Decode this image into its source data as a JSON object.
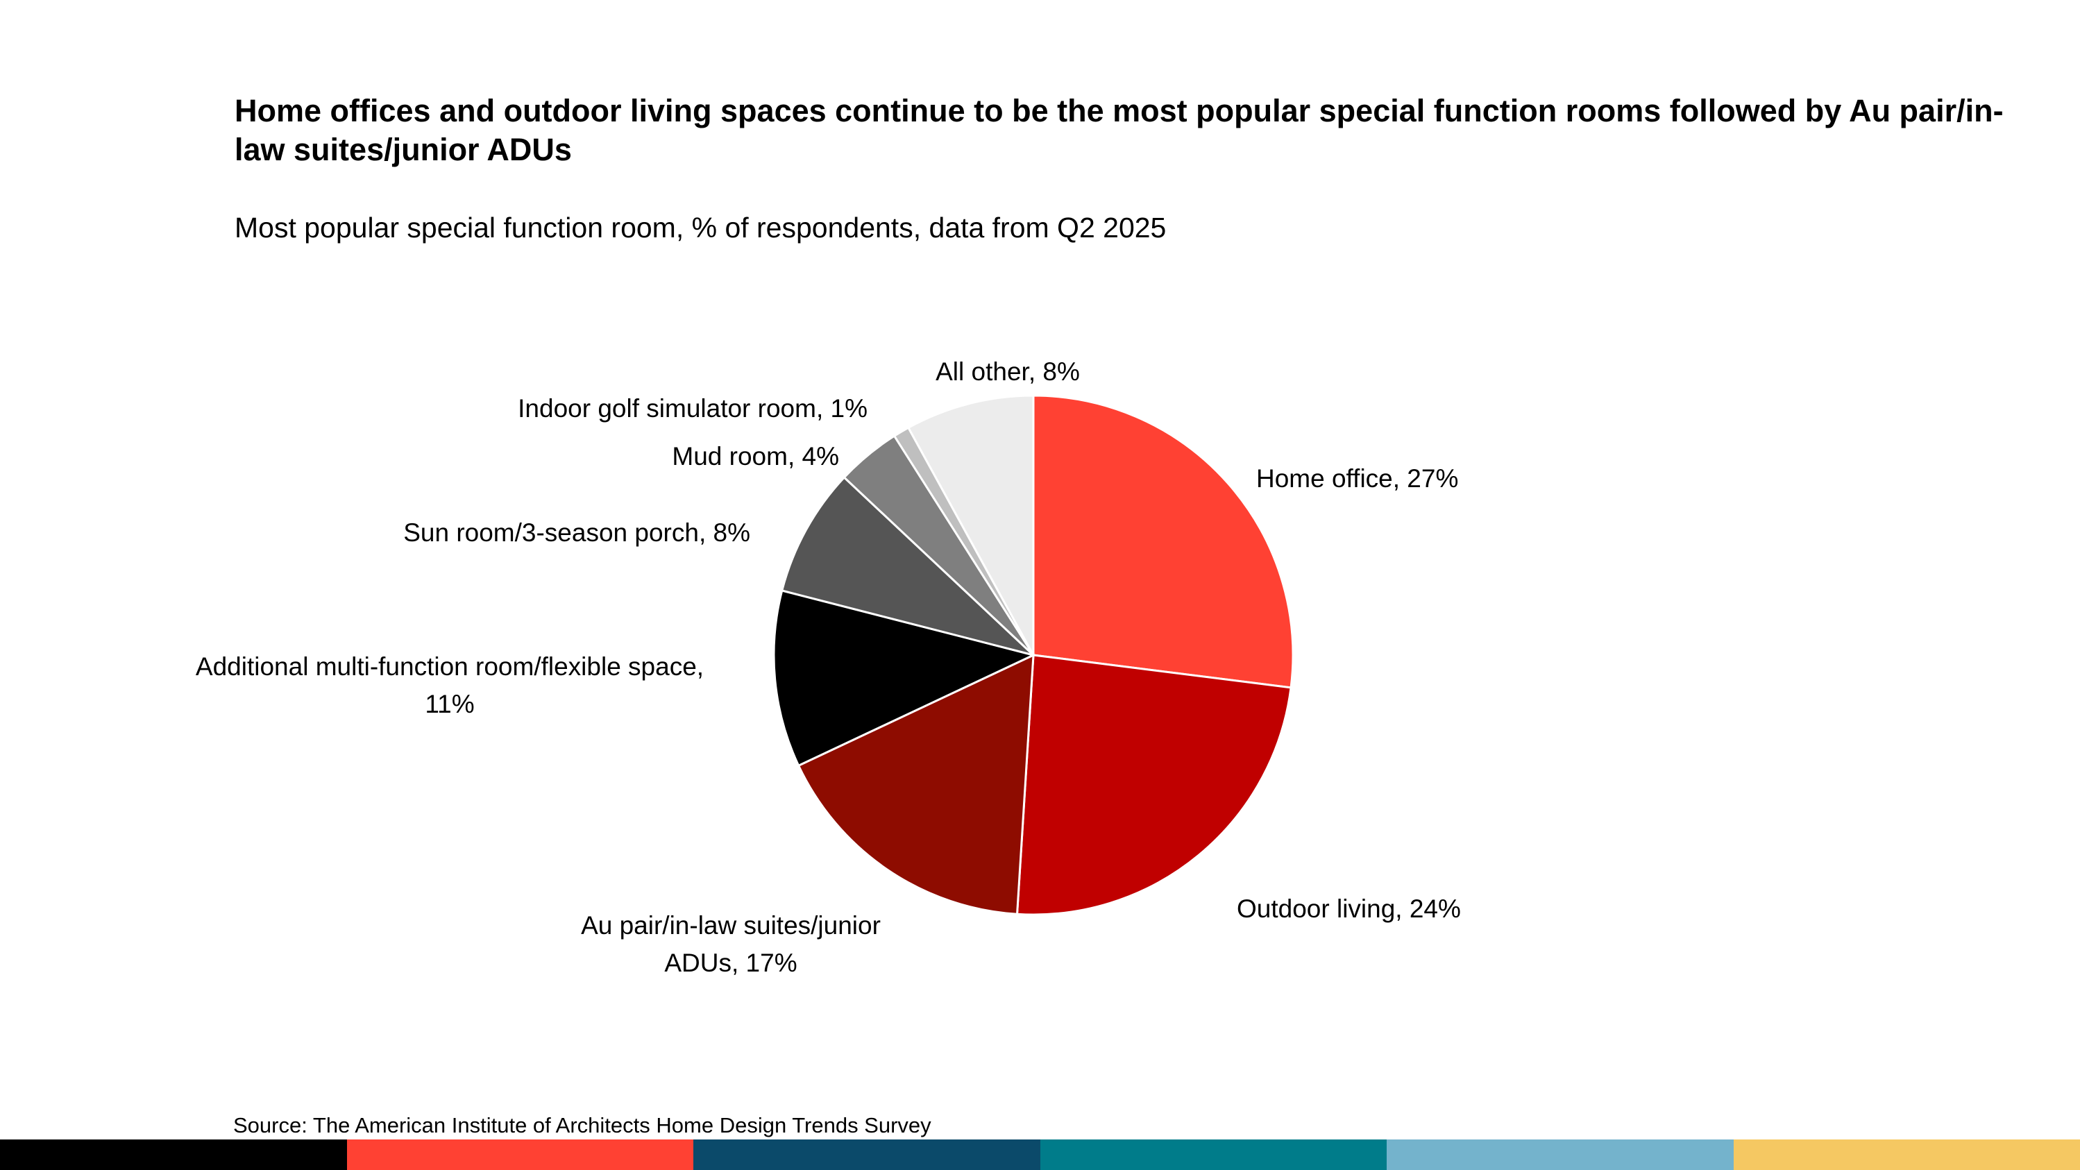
{
  "chart_data": {
    "type": "pie",
    "title": "Home offices and outdoor living spaces continue to be the most popular special function rooms followed by Au pair/in-law suites/junior ADUs",
    "subtitle": "Most popular special function room, % of respondents, data from Q2 2025",
    "source": "Source: The American Institute of Architects Home Design Trends Survey",
    "unit": "%",
    "legend": "none",
    "slices": [
      {
        "label": "Home office",
        "value": 27,
        "label_lines": [
          "Home office, 27%"
        ],
        "color": "#ff4133"
      },
      {
        "label": "Outdoor living",
        "value": 24,
        "label_lines": [
          "Outdoor living, 24%"
        ],
        "color": "#c00000"
      },
      {
        "label": "Au pair/in-law suites/junior ADUs",
        "value": 17,
        "label_lines": [
          "Au pair/in-law suites/junior",
          "ADUs, 17%"
        ],
        "color": "#8e0c00"
      },
      {
        "label": "Additional multi-function room/flexible space",
        "value": 11,
        "label_lines": [
          "Additional multi-function room/flexible space,",
          "11%"
        ],
        "color": "#000000"
      },
      {
        "label": "Sun room/3-season porch",
        "value": 8,
        "label_lines": [
          "Sun room/3-season porch, 8%"
        ],
        "color": "#555555"
      },
      {
        "label": "Mud room",
        "value": 4,
        "label_lines": [
          "Mud room, 4%"
        ],
        "color": "#7f7f7f"
      },
      {
        "label": "Indoor golf simulator room",
        "value": 1,
        "label_lines": [
          "Indoor golf simulator room, 1%"
        ],
        "color": "#bfbfbf"
      },
      {
        "label": "All other",
        "value": 8,
        "label_lines": [
          "All other, 8%"
        ],
        "color": "#ececec"
      }
    ]
  },
  "footer": {
    "colors": [
      "#000000",
      "#ff4133",
      "#0b4a6a",
      "#007c8a",
      "#74b3cc",
      "#f5c862"
    ]
  }
}
